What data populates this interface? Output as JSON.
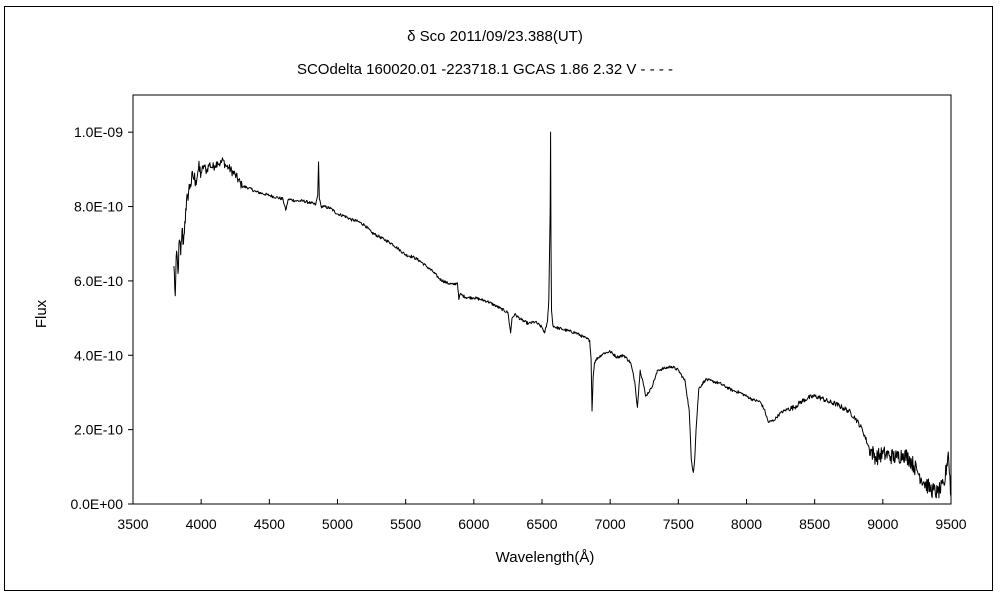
{
  "chart_data": {
    "type": "line",
    "title": "δ  Sco      2011/09/23.388(UT)",
    "subtitle": "SCOdelta 160020.01  -223718.1 GCAS 1.86 2.32 V - - - -",
    "xlabel": "Wavelength(Å)",
    "ylabel": "Flux",
    "xlim": [
      3500,
      9500
    ],
    "ylim": [
      0,
      1.1e-09
    ],
    "x_ticks": [
      3500,
      4000,
      4500,
      5000,
      5500,
      6000,
      6500,
      7000,
      7500,
      8000,
      8500,
      9000,
      9500
    ],
    "x_tick_labels": [
      "3500",
      "4000",
      "4500",
      "5000",
      "5500",
      "6000",
      "6500",
      "7000",
      "7500",
      "8000",
      "8500",
      "9000",
      "9500"
    ],
    "y_ticks": [
      0,
      2e-10,
      4e-10,
      6e-10,
      8e-10,
      1e-09
    ],
    "y_tick_labels": [
      "0.0E+00",
      "2.0E-10",
      "4.0E-10",
      "6.0E-10",
      "8.0E-10",
      "1.0E-09"
    ],
    "grid": false,
    "legend": "none",
    "line_color": "#000000",
    "series": [
      {
        "x": [
          3800,
          3810,
          3820,
          3830,
          3840,
          3850,
          3860,
          3870,
          3880,
          3890,
          3900,
          3920,
          3940,
          3960,
          3980,
          4000,
          4020,
          4040,
          4060,
          4080,
          4100,
          4120,
          4140,
          4160,
          4180,
          4200,
          4250,
          4300,
          4350,
          4400,
          4450,
          4500,
          4550,
          4600,
          4620,
          4640,
          4700,
          4750,
          4800,
          4840,
          4855,
          4861,
          4867,
          4880,
          4900,
          4950,
          5000,
          5050,
          5100,
          5150,
          5200,
          5250,
          5300,
          5350,
          5400,
          5450,
          5500,
          5550,
          5600,
          5650,
          5700,
          5750,
          5800,
          5850,
          5880,
          5890,
          5900,
          5920,
          5950,
          6000,
          6050,
          6100,
          6150,
          6200,
          6250,
          6270,
          6280,
          6300,
          6350,
          6400,
          6450,
          6500,
          6520,
          6540,
          6550,
          6560,
          6563,
          6566,
          6570,
          6580,
          6600,
          6650,
          6700,
          6750,
          6800,
          6850,
          6860,
          6867,
          6875,
          6885,
          6900,
          6950,
          7000,
          7050,
          7100,
          7150,
          7180,
          7200,
          7220,
          7240,
          7260,
          7300,
          7350,
          7400,
          7450,
          7500,
          7550,
          7580,
          7595,
          7610,
          7620,
          7630,
          7650,
          7700,
          7750,
          7800,
          7850,
          7900,
          7950,
          8000,
          8050,
          8100,
          8130,
          8160,
          8200,
          8250,
          8300,
          8350,
          8400,
          8450,
          8500,
          8550,
          8600,
          8650,
          8700,
          8750,
          8800,
          8850,
          8900,
          8950,
          9000,
          9050,
          9100,
          9150,
          9200,
          9250,
          9300,
          9350,
          9400,
          9450,
          9480,
          9500
        ],
        "y": [
          6.4e-10,
          5.6e-10,
          6.8e-10,
          6.2e-10,
          7.1e-10,
          6.7e-10,
          7.4e-10,
          7e-10,
          7.6e-10,
          7.9e-10,
          8.3e-10,
          8.6e-10,
          8.8e-10,
          8.7e-10,
          9e-10,
          8.9e-10,
          9.1e-10,
          8.95e-10,
          9.15e-10,
          9.05e-10,
          9.1e-10,
          9.2e-10,
          9.15e-10,
          9.25e-10,
          9.1e-10,
          9.05e-10,
          8.85e-10,
          8.55e-10,
          8.5e-10,
          8.4e-10,
          8.35e-10,
          8.3e-10,
          8.25e-10,
          8.2e-10,
          7.9e-10,
          8.2e-10,
          8.15e-10,
          8.15e-10,
          8.1e-10,
          8.05e-10,
          8.3e-10,
          9.2e-10,
          8.2e-10,
          8e-10,
          8e-10,
          7.95e-10,
          7.8e-10,
          7.75e-10,
          7.65e-10,
          7.6e-10,
          7.5e-10,
          7.3e-10,
          7.2e-10,
          7.1e-10,
          7e-10,
          6.85e-10,
          6.7e-10,
          6.65e-10,
          6.55e-10,
          6.4e-10,
          6.25e-10,
          6.05e-10,
          5.95e-10,
          5.9e-10,
          5.95e-10,
          5.5e-10,
          5.65e-10,
          5.6e-10,
          5.55e-10,
          5.55e-10,
          5.5e-10,
          5.45e-10,
          5.35e-10,
          5.25e-10,
          5.15e-10,
          4.6e-10,
          5e-10,
          5.1e-10,
          4.95e-10,
          4.85e-10,
          4.9e-10,
          4.75e-10,
          4.6e-10,
          4.9e-10,
          5.5e-10,
          7.9e-10,
          1e-09,
          7e-10,
          5.2e-10,
          4.8e-10,
          4.75e-10,
          4.7e-10,
          4.65e-10,
          4.6e-10,
          4.5e-10,
          4.4e-10,
          3.9e-10,
          2.5e-10,
          3.4e-10,
          3.8e-10,
          3.9e-10,
          4.05e-10,
          4.1e-10,
          3.95e-10,
          4e-10,
          3.8e-10,
          3.3e-10,
          2.6e-10,
          3.6e-10,
          3.3e-10,
          2.9e-10,
          3.1e-10,
          3.6e-10,
          3.65e-10,
          3.7e-10,
          3.6e-10,
          3.3e-10,
          2.5e-10,
          1.2e-10,
          8.5e-11,
          1.2e-10,
          2e-10,
          3.1e-10,
          3.35e-10,
          3.3e-10,
          3.25e-10,
          3.15e-10,
          3.05e-10,
          3e-10,
          2.9e-10,
          2.8e-10,
          2.75e-10,
          2.55e-10,
          2.2e-10,
          2.25e-10,
          2.45e-10,
          2.55e-10,
          2.6e-10,
          2.75e-10,
          2.85e-10,
          2.9e-10,
          2.85e-10,
          2.75e-10,
          2.7e-10,
          2.6e-10,
          2.5e-10,
          2.3e-10,
          2e-10,
          1.5e-10,
          1.25e-10,
          1.35e-10,
          1.3e-10,
          1.25e-10,
          1.35e-10,
          1.2e-10,
          9e-11,
          6e-11,
          4e-11,
          3e-11,
          5e-11,
          1.4e-10,
          2e-11
        ]
      }
    ]
  }
}
